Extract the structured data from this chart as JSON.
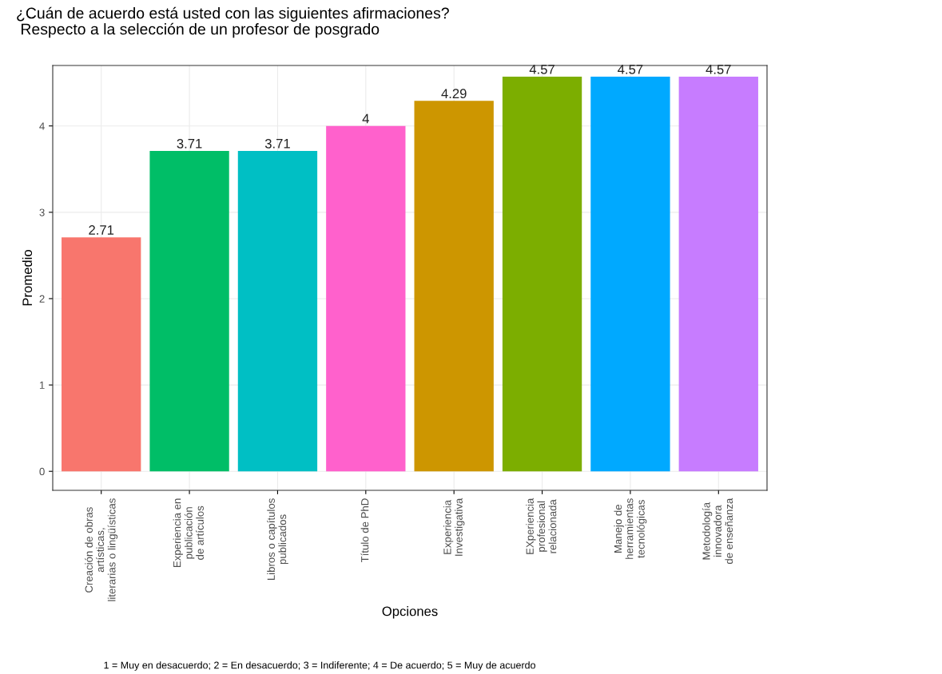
{
  "chart_data": {
    "type": "bar",
    "title": "¿Cuán de acuerdo está usted con las siguientes afirmaciones?",
    "subtitle": " Respecto a la selección de un profesor de posgrado",
    "xlabel": "Opciones",
    "ylabel": "Promedio",
    "categories": [
      "Creación de obras\nartísticas,\nliterarias o lingüísticas",
      "Experiencia en\npublicación\nde artículos",
      "Libros o capítulos\npublicados",
      "Título de PhD",
      "Experiencia\nInvestigativa",
      "EXperiencia\nprofesional\nrelacionada",
      "Manejo de\nherramientas\ntecnológicas",
      "Metodología\ninnovadora\nde enseñanza"
    ],
    "values": [
      2.71,
      3.71,
      3.71,
      4,
      4.29,
      4.57,
      4.57,
      4.57
    ],
    "colors": [
      "#f8766d",
      "#00be67",
      "#00bfc4",
      "#ff61cc",
      "#cd9600",
      "#7cae00",
      "#00a9ff",
      "#c77cff"
    ],
    "ylim": [
      -0.22,
      4.7
    ],
    "yticks": [
      0,
      1,
      2,
      3,
      4
    ],
    "grid": true,
    "data_labels": true,
    "annotations": [
      "1 = Muy en desacuerdo; 2 = En desacuerdo; 3 = Indiferente; 4 = De acuerdo; 5 = Muy de acuerdo"
    ]
  }
}
